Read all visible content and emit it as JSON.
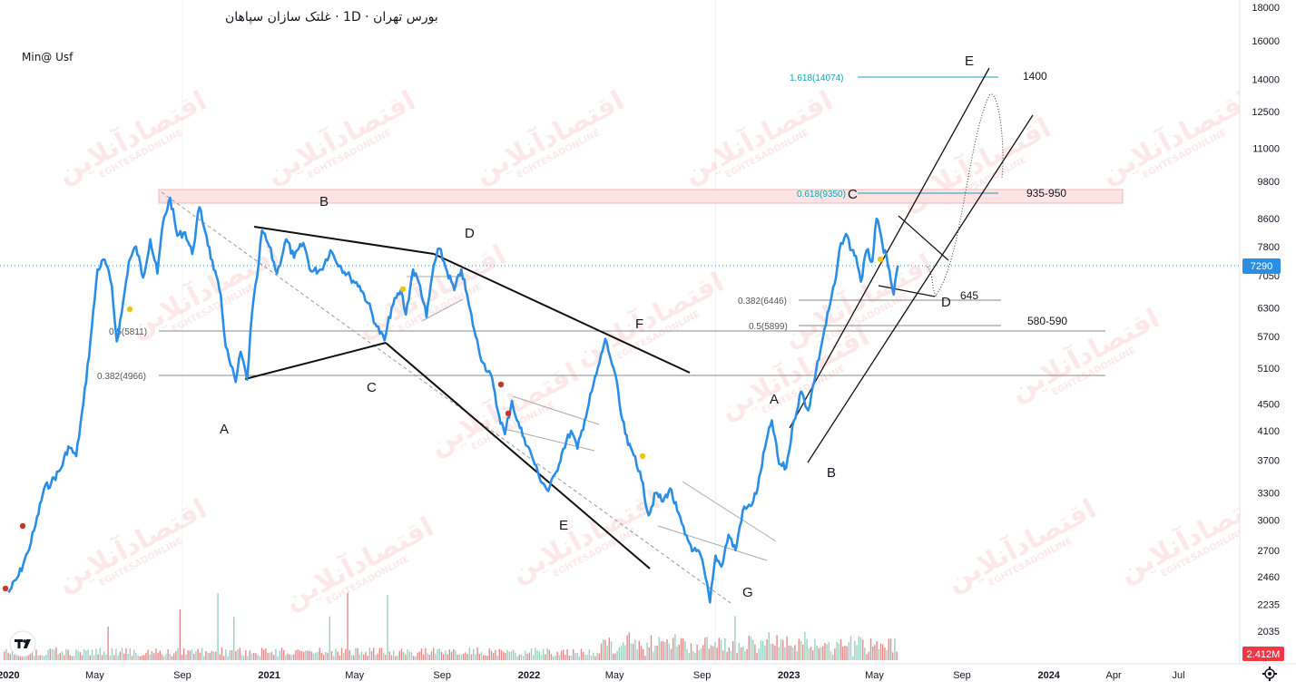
{
  "header": {
    "title": "بورس تهران · 1D · غلتک سازان سپاهان",
    "indicator": "Min@ Usf"
  },
  "colors": {
    "price_line": "#2a8ee6",
    "resistance_band": "#fde3e3",
    "fib_teal": "#12a3b5",
    "last_price_tag": "#2a8ee6",
    "volume_tag": "#f23645",
    "volume_up": "#e58a8a",
    "volume_down": "#9ad0c2",
    "watermark": "#f2545b"
  },
  "logo": {
    "name": "tradingview-logo-icon"
  },
  "watermark_text": "اقتصادآنلاین",
  "watermark_sub": "EGHTESADONLINE",
  "chart_data": {
    "type": "line",
    "title": "",
    "xlabel": "",
    "ylabel": "",
    "y_scale": "log",
    "ylim": [
      1900,
      18500
    ],
    "xlim": [
      "2019-12-20",
      "2024-09-25"
    ],
    "y_ticks": [
      18000,
      16000,
      14000,
      12500,
      11000,
      9800,
      8600,
      7800,
      7050,
      6300,
      5700,
      5100,
      4500,
      4100,
      3700,
      3300,
      3000,
      2700,
      2460,
      2235,
      2035
    ],
    "x_ticks": [
      {
        "label": "2020",
        "date": "2020-01-01",
        "bold": true
      },
      {
        "label": "May",
        "date": "2020-05-01",
        "bold": false
      },
      {
        "label": "Sep",
        "date": "2020-09-01",
        "bold": false
      },
      {
        "label": "2021",
        "date": "2021-01-01",
        "bold": true
      },
      {
        "label": "May",
        "date": "2021-05-01",
        "bold": false
      },
      {
        "label": "Sep",
        "date": "2021-09-01",
        "bold": false
      },
      {
        "label": "2022",
        "date": "2022-01-01",
        "bold": true
      },
      {
        "label": "May",
        "date": "2022-05-01",
        "bold": false
      },
      {
        "label": "Sep",
        "date": "2022-09-01",
        "bold": false
      },
      {
        "label": "2023",
        "date": "2023-01-01",
        "bold": true
      },
      {
        "label": "May",
        "date": "2023-05-01",
        "bold": false
      },
      {
        "label": "Sep",
        "date": "2023-09-01",
        "bold": false
      },
      {
        "label": "2024",
        "date": "2024-01-01",
        "bold": true
      },
      {
        "label": "Apr",
        "date": "2024-04-01",
        "bold": false
      },
      {
        "label": "Jul",
        "date": "2024-07-01",
        "bold": false
      }
    ],
    "last_price": {
      "value": 7290,
      "label": "7290"
    },
    "volume_label": "2.412M",
    "series": [
      {
        "values_format": "[date, price]",
        "points": [
          [
            "2020-01-01",
            2330
          ],
          [
            "2020-01-15",
            2470
          ],
          [
            "2020-01-28",
            2680
          ],
          [
            "2020-02-08",
            2950
          ],
          [
            "2020-02-20",
            3350
          ],
          [
            "2020-03-01",
            3420
          ],
          [
            "2020-03-15",
            3600
          ],
          [
            "2020-03-25",
            3880
          ],
          [
            "2020-04-05",
            3750
          ],
          [
            "2020-04-15",
            4500
          ],
          [
            "2020-04-25",
            5600
          ],
          [
            "2020-05-05",
            7200
          ],
          [
            "2020-05-15",
            7450
          ],
          [
            "2020-05-25",
            6800
          ],
          [
            "2020-06-01",
            5600
          ],
          [
            "2020-06-08",
            6200
          ],
          [
            "2020-06-18",
            7400
          ],
          [
            "2020-06-28",
            7800
          ],
          [
            "2020-07-08",
            7000
          ],
          [
            "2020-07-18",
            8000
          ],
          [
            "2020-07-28",
            7100
          ],
          [
            "2020-08-05",
            8500
          ],
          [
            "2020-08-15",
            9250
          ],
          [
            "2020-08-25",
            8100
          ],
          [
            "2020-09-05",
            8200
          ],
          [
            "2020-09-15",
            7600
          ],
          [
            "2020-09-25",
            8950
          ],
          [
            "2020-10-05",
            8100
          ],
          [
            "2020-10-15",
            7200
          ],
          [
            "2020-10-25",
            6600
          ],
          [
            "2020-11-01",
            5500
          ],
          [
            "2020-11-08",
            5150
          ],
          [
            "2020-11-15",
            4860
          ],
          [
            "2020-11-22",
            5400
          ],
          [
            "2020-12-01",
            4900
          ],
          [
            "2020-12-08",
            6200
          ],
          [
            "2020-12-15",
            7000
          ],
          [
            "2020-12-22",
            8250
          ],
          [
            "2021-01-01",
            7800
          ],
          [
            "2021-01-12",
            7100
          ],
          [
            "2021-01-25",
            8000
          ],
          [
            "2021-02-05",
            7500
          ],
          [
            "2021-02-18",
            7900
          ],
          [
            "2021-03-01",
            7150
          ],
          [
            "2021-03-15",
            7200
          ],
          [
            "2021-03-28",
            7700
          ],
          [
            "2021-04-10",
            7300
          ],
          [
            "2021-04-25",
            7000
          ],
          [
            "2021-05-08",
            6800
          ],
          [
            "2021-05-20",
            6400
          ],
          [
            "2021-06-01",
            5900
          ],
          [
            "2021-06-12",
            5620
          ],
          [
            "2021-06-22",
            6300
          ],
          [
            "2021-07-05",
            6700
          ],
          [
            "2021-07-12",
            6150
          ],
          [
            "2021-07-22",
            7200
          ],
          [
            "2021-08-01",
            6800
          ],
          [
            "2021-08-10",
            6100
          ],
          [
            "2021-08-20",
            7300
          ],
          [
            "2021-08-28",
            7750
          ],
          [
            "2021-09-08",
            7150
          ],
          [
            "2021-09-18",
            6700
          ],
          [
            "2021-09-28",
            7200
          ],
          [
            "2021-10-08",
            6400
          ],
          [
            "2021-10-18",
            5700
          ],
          [
            "2021-10-28",
            5200
          ],
          [
            "2021-11-08",
            5000
          ],
          [
            "2021-11-18",
            4400
          ],
          [
            "2021-11-28",
            4050
          ],
          [
            "2021-12-08",
            4550
          ],
          [
            "2021-12-15",
            4250
          ],
          [
            "2021-12-25",
            4000
          ],
          [
            "2022-01-05",
            3750
          ],
          [
            "2022-01-15",
            3500
          ],
          [
            "2022-01-28",
            3320
          ],
          [
            "2022-02-08",
            3550
          ],
          [
            "2022-02-18",
            3850
          ],
          [
            "2022-03-01",
            4100
          ],
          [
            "2022-03-10",
            3850
          ],
          [
            "2022-03-20",
            4250
          ],
          [
            "2022-03-30",
            4700
          ],
          [
            "2022-04-10",
            5200
          ],
          [
            "2022-04-18",
            5650
          ],
          [
            "2022-04-25",
            5300
          ],
          [
            "2022-05-02",
            5000
          ],
          [
            "2022-05-10",
            4350
          ],
          [
            "2022-05-20",
            3900
          ],
          [
            "2022-05-30",
            3750
          ],
          [
            "2022-06-08",
            3450
          ],
          [
            "2022-06-18",
            3050
          ],
          [
            "2022-06-28",
            3300
          ],
          [
            "2022-07-08",
            3200
          ],
          [
            "2022-07-18",
            3350
          ],
          [
            "2022-07-28",
            3100
          ],
          [
            "2022-08-08",
            2850
          ],
          [
            "2022-08-20",
            2700
          ],
          [
            "2022-08-30",
            2650
          ],
          [
            "2022-09-06",
            2450
          ],
          [
            "2022-09-12",
            2250
          ],
          [
            "2022-09-20",
            2650
          ],
          [
            "2022-09-28",
            2550
          ],
          [
            "2022-10-08",
            2850
          ],
          [
            "2022-10-18",
            2700
          ],
          [
            "2022-10-28",
            3100
          ],
          [
            "2022-11-08",
            3150
          ],
          [
            "2022-11-18",
            3350
          ],
          [
            "2022-11-28",
            3850
          ],
          [
            "2022-12-08",
            4250
          ],
          [
            "2022-12-18",
            3650
          ],
          [
            "2022-12-28",
            3600
          ],
          [
            "2023-01-08",
            4250
          ],
          [
            "2023-01-18",
            4700
          ],
          [
            "2023-01-28",
            4400
          ],
          [
            "2023-02-08",
            5050
          ],
          [
            "2023-02-18",
            5700
          ],
          [
            "2023-02-28",
            6400
          ],
          [
            "2023-03-08",
            7000
          ],
          [
            "2023-03-15",
            7900
          ],
          [
            "2023-03-22",
            8150
          ],
          [
            "2023-03-30",
            7700
          ],
          [
            "2023-04-05",
            7550
          ],
          [
            "2023-04-12",
            6900
          ],
          [
            "2023-04-20",
            7700
          ],
          [
            "2023-04-28",
            7400
          ],
          [
            "2023-05-04",
            8600
          ],
          [
            "2023-05-12",
            7900
          ],
          [
            "2023-05-20",
            7300
          ],
          [
            "2023-05-28",
            6600
          ],
          [
            "2023-06-03",
            7300
          ]
        ]
      }
    ],
    "fib_levels": [
      {
        "label": "0.382(4966)",
        "value": 4966
      },
      {
        "label": "0.5(5811)",
        "value": 5811
      },
      {
        "label": "0.382(6446)",
        "value": 6446
      },
      {
        "label": "0.5(5899)",
        "value": 5899
      },
      {
        "label": "0.618(9350)",
        "value": 9350
      },
      {
        "label": "1.618(14074)",
        "value": 14074
      }
    ],
    "annotations": [
      {
        "text": "1400"
      },
      {
        "text": "935-950"
      },
      {
        "text": "645"
      },
      {
        "text": "580-590"
      }
    ],
    "wave_labels": [
      "A",
      "B",
      "C",
      "D",
      "E",
      "F",
      "G",
      "A",
      "B",
      "C",
      "D",
      "E"
    ]
  }
}
